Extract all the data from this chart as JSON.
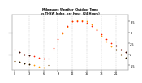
{
  "bg_color": "#ffffff",
  "grid_color": "#aaaaaa",
  "title_color": "#000000",
  "tick_color": "#000000",
  "hours": [
    0,
    1,
    2,
    3,
    4,
    5,
    6,
    7,
    8,
    9,
    10,
    11,
    12,
    13,
    14,
    15,
    16,
    17,
    18,
    19,
    20,
    21,
    22,
    23
  ],
  "temp": [
    2.2,
    2.1,
    2.0,
    1.95,
    1.9,
    1.85,
    1.8,
    1.8,
    2.3,
    2.7,
    3.0,
    3.3,
    3.5,
    3.5,
    3.5,
    3.45,
    3.3,
    3.1,
    2.9,
    2.7,
    2.5,
    2.4,
    2.2,
    2.1
  ],
  "thsw": [
    1.7,
    1.65,
    1.6,
    1.55,
    1.5,
    1.45,
    1.4,
    1.5,
    2.2,
    2.6,
    2.95,
    3.25,
    3.5,
    3.55,
    3.55,
    3.5,
    3.35,
    3.15,
    2.85,
    2.6,
    2.35,
    2.2,
    2.0,
    1.85
  ],
  "black_dots": [
    0,
    1,
    2,
    3,
    7,
    21,
    22,
    23
  ],
  "temp_color": "#ff2200",
  "thsw_color": "#ff9900",
  "black_color": "#111111",
  "ylim": [
    1.3,
    3.8
  ],
  "yticks_right": [
    1.5,
    2.0,
    2.5,
    3.0,
    3.5
  ],
  "ytick_labels_right": [
    "1¹⁵",
    "2",
    "2¹⁵",
    "3",
    "3¹⁵"
  ],
  "xticks": [
    0,
    3,
    6,
    9,
    12,
    15,
    18,
    21
  ],
  "xtick_labels": [
    "0",
    "3",
    "6",
    "9",
    "12",
    "15",
    "18",
    "21"
  ],
  "dashed_hours": [
    3,
    6,
    9,
    12,
    15,
    18,
    21
  ],
  "marker_size": 1.5,
  "title": "Milwaukee Weather  Outdoor Temp  vs THSW  per Hour (24H)"
}
